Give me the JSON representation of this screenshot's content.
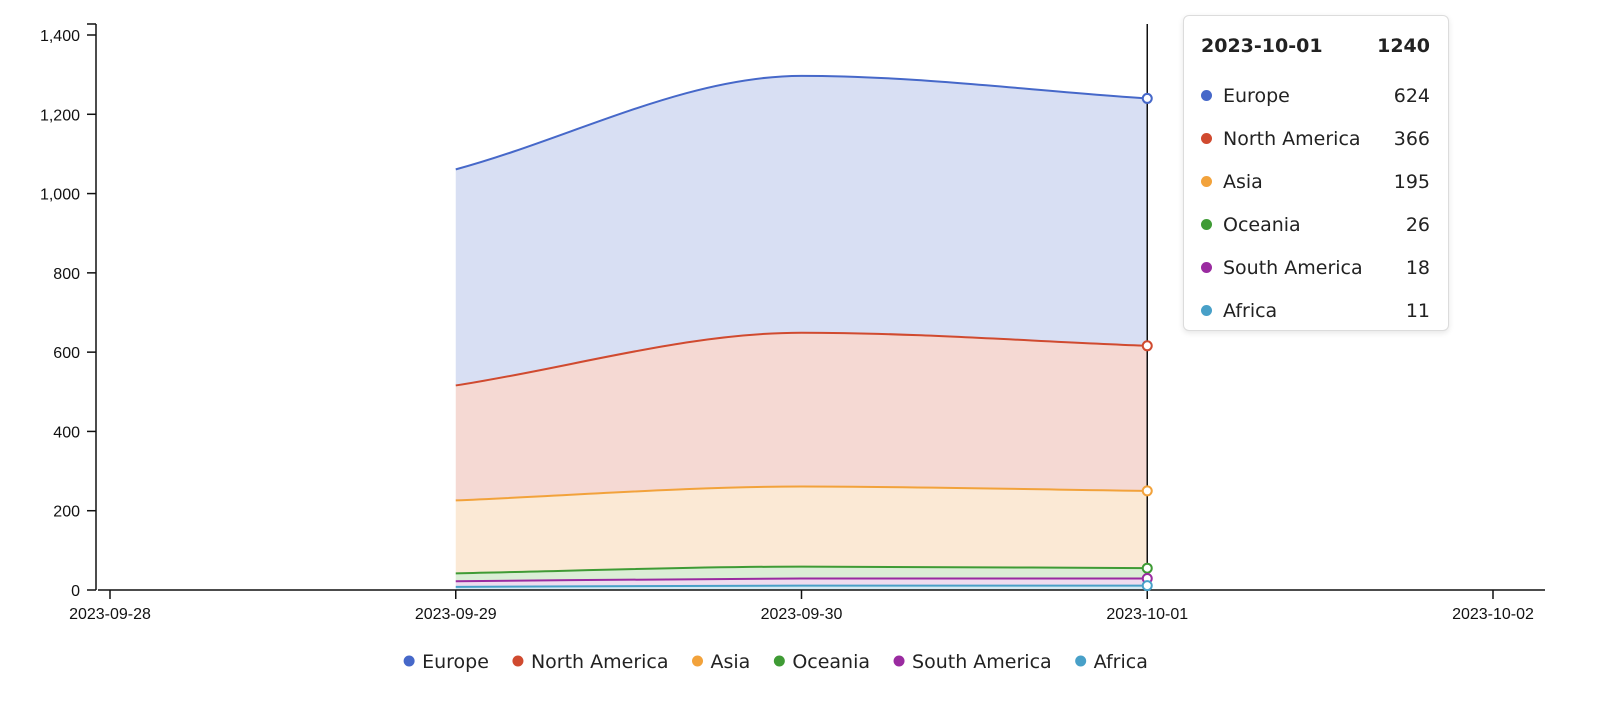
{
  "chart_data": {
    "type": "area",
    "stacked": true,
    "x": [
      "2023-09-29",
      "2023-09-30",
      "2023-10-01"
    ],
    "x_ticks": [
      "2023-09-28",
      "2023-09-29",
      "2023-09-30",
      "2023-10-01",
      "2023-10-02"
    ],
    "xlim": [
      "2023-09-28",
      "2023-10-02"
    ],
    "ylim": [
      0,
      1400
    ],
    "y_ticks": [
      0,
      200,
      400,
      600,
      800,
      1000,
      1200,
      1400
    ],
    "y_tick_labels": [
      "0",
      "200",
      "400",
      "600",
      "800",
      "1,000",
      "1,200",
      "1,400"
    ],
    "series": [
      {
        "name": "Europe",
        "color": "#4668c9",
        "fill": "#d8dff3",
        "values": [
          545,
          648,
          624
        ]
      },
      {
        "name": "North America",
        "color": "#d04a2f",
        "fill": "#f5d9d3",
        "values": [
          290,
          388,
          366
        ]
      },
      {
        "name": "Asia",
        "color": "#f2a23b",
        "fill": "#fbe9d5",
        "values": [
          184,
          202,
          195
        ]
      },
      {
        "name": "Oceania",
        "color": "#3f9b35",
        "fill": "#dbeed6",
        "values": [
          20,
          30,
          26
        ]
      },
      {
        "name": "South America",
        "color": "#9a2ba0",
        "fill": "#eedcef",
        "values": [
          14,
          18,
          18
        ]
      },
      {
        "name": "Africa",
        "color": "#48a0c8",
        "fill": "#d6eaf3",
        "values": [
          8,
          11,
          11
        ]
      }
    ],
    "legend_position": "bottom-center",
    "hover_x": "2023-10-01",
    "grid": false
  },
  "tooltip": {
    "date": "2023-10-01",
    "total": "1240",
    "rows": [
      {
        "name": "Europe",
        "value": "624",
        "color": "#4668c9"
      },
      {
        "name": "North America",
        "value": "366",
        "color": "#d04a2f"
      },
      {
        "name": "Asia",
        "value": "195",
        "color": "#f2a23b"
      },
      {
        "name": "Oceania",
        "value": "26",
        "color": "#3f9b35"
      },
      {
        "name": "South America",
        "value": "18",
        "color": "#9a2ba0"
      },
      {
        "name": "Africa",
        "value": "11",
        "color": "#48a0c8"
      }
    ]
  }
}
